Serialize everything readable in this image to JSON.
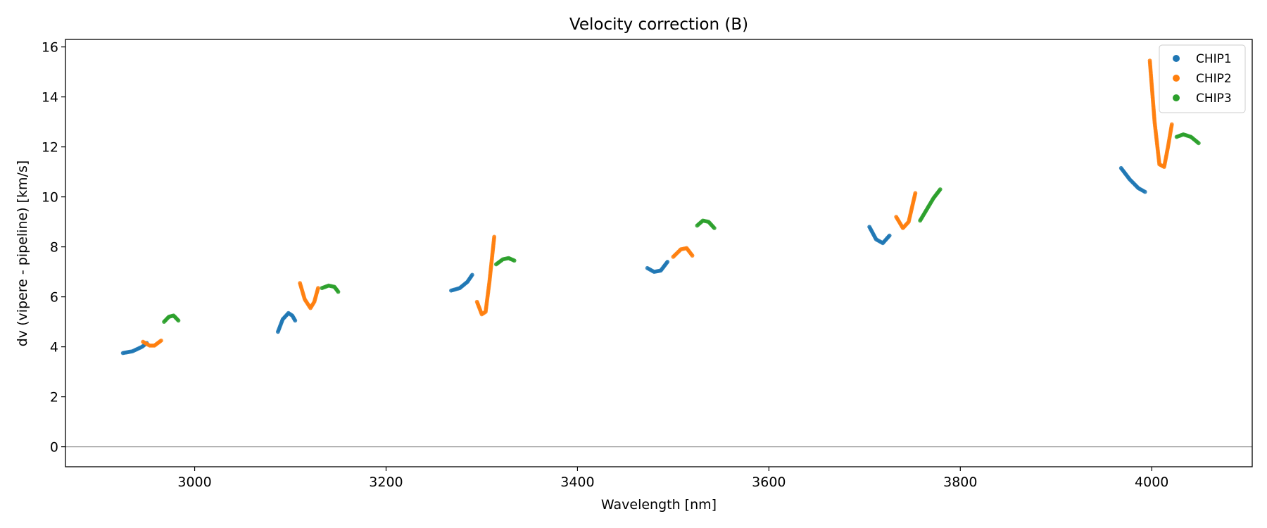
{
  "chart_data": {
    "type": "scatter",
    "title": "Velocity correction (B)",
    "xlabel": "Wavelength [nm]",
    "ylabel": "dv (vipere - pipeline) [km/s]",
    "xlim": [
      2865,
      4105
    ],
    "ylim": [
      -0.8,
      16.3
    ],
    "xticks": [
      3000,
      3200,
      3400,
      3600,
      3800,
      4000
    ],
    "yticks": [
      0,
      2,
      4,
      6,
      8,
      10,
      12,
      14,
      16
    ],
    "zero_line": 0,
    "legend_position": "top-right",
    "series": [
      {
        "name": "CHIP1",
        "color": "#1f77b4",
        "segments": [
          [
            [
              2925,
              3.75
            ],
            [
              2935,
              3.82
            ],
            [
              2945,
              4.0
            ],
            [
              2950,
              4.15
            ]
          ],
          [
            [
              3087,
              4.6
            ],
            [
              3092,
              5.1
            ],
            [
              3098,
              5.35
            ],
            [
              3102,
              5.25
            ],
            [
              3105,
              5.05
            ]
          ],
          [
            [
              3268,
              6.25
            ],
            [
              3277,
              6.35
            ],
            [
              3285,
              6.6
            ],
            [
              3290,
              6.88
            ]
          ],
          [
            [
              3473,
              7.15
            ],
            [
              3480,
              7.0
            ],
            [
              3487,
              7.05
            ],
            [
              3494,
              7.4
            ]
          ],
          [
            [
              3705,
              8.8
            ],
            [
              3712,
              8.3
            ],
            [
              3719,
              8.15
            ],
            [
              3726,
              8.45
            ]
          ],
          [
            [
              3968,
              11.15
            ],
            [
              3977,
              10.7
            ],
            [
              3986,
              10.35
            ],
            [
              3993,
              10.2
            ]
          ]
        ]
      },
      {
        "name": "CHIP2",
        "color": "#ff7f0e",
        "segments": [
          [
            [
              2946,
              4.2
            ],
            [
              2953,
              4.05
            ],
            [
              2958,
              4.05
            ],
            [
              2965,
              4.25
            ]
          ],
          [
            [
              3110,
              6.55
            ],
            [
              3115,
              5.9
            ],
            [
              3121,
              5.55
            ],
            [
              3125,
              5.8
            ],
            [
              3129,
              6.35
            ]
          ],
          [
            [
              3295,
              5.8
            ],
            [
              3300,
              5.3
            ],
            [
              3304,
              5.4
            ],
            [
              3308,
              6.6
            ],
            [
              3313,
              8.4
            ]
          ],
          [
            [
              3500,
              7.6
            ],
            [
              3508,
              7.9
            ],
            [
              3514,
              7.95
            ],
            [
              3520,
              7.65
            ]
          ],
          [
            [
              3733,
              9.2
            ],
            [
              3740,
              8.75
            ],
            [
              3746,
              9.0
            ],
            [
              3753,
              10.15
            ]
          ],
          [
            [
              3998,
              15.45
            ],
            [
              4003,
              13.0
            ],
            [
              4008,
              11.3
            ],
            [
              4013,
              11.2
            ],
            [
              4017,
              12.0
            ],
            [
              4021,
              12.9
            ]
          ]
        ]
      },
      {
        "name": "CHIP3",
        "color": "#2ca02c",
        "segments": [
          [
            [
              2968,
              5.0
            ],
            [
              2973,
              5.2
            ],
            [
              2978,
              5.25
            ],
            [
              2983,
              5.05
            ]
          ],
          [
            [
              3133,
              6.35
            ],
            [
              3140,
              6.45
            ],
            [
              3146,
              6.4
            ],
            [
              3150,
              6.2
            ]
          ],
          [
            [
              3315,
              7.3
            ],
            [
              3322,
              7.5
            ],
            [
              3328,
              7.55
            ],
            [
              3334,
              7.45
            ]
          ],
          [
            [
              3525,
              8.85
            ],
            [
              3531,
              9.05
            ],
            [
              3537,
              9.0
            ],
            [
              3543,
              8.75
            ]
          ],
          [
            [
              3758,
              9.05
            ],
            [
              3765,
              9.5
            ],
            [
              3772,
              9.95
            ],
            [
              3779,
              10.3
            ]
          ],
          [
            [
              4026,
              12.4
            ],
            [
              4033,
              12.5
            ],
            [
              4041,
              12.4
            ],
            [
              4049,
              12.15
            ]
          ]
        ]
      }
    ]
  }
}
